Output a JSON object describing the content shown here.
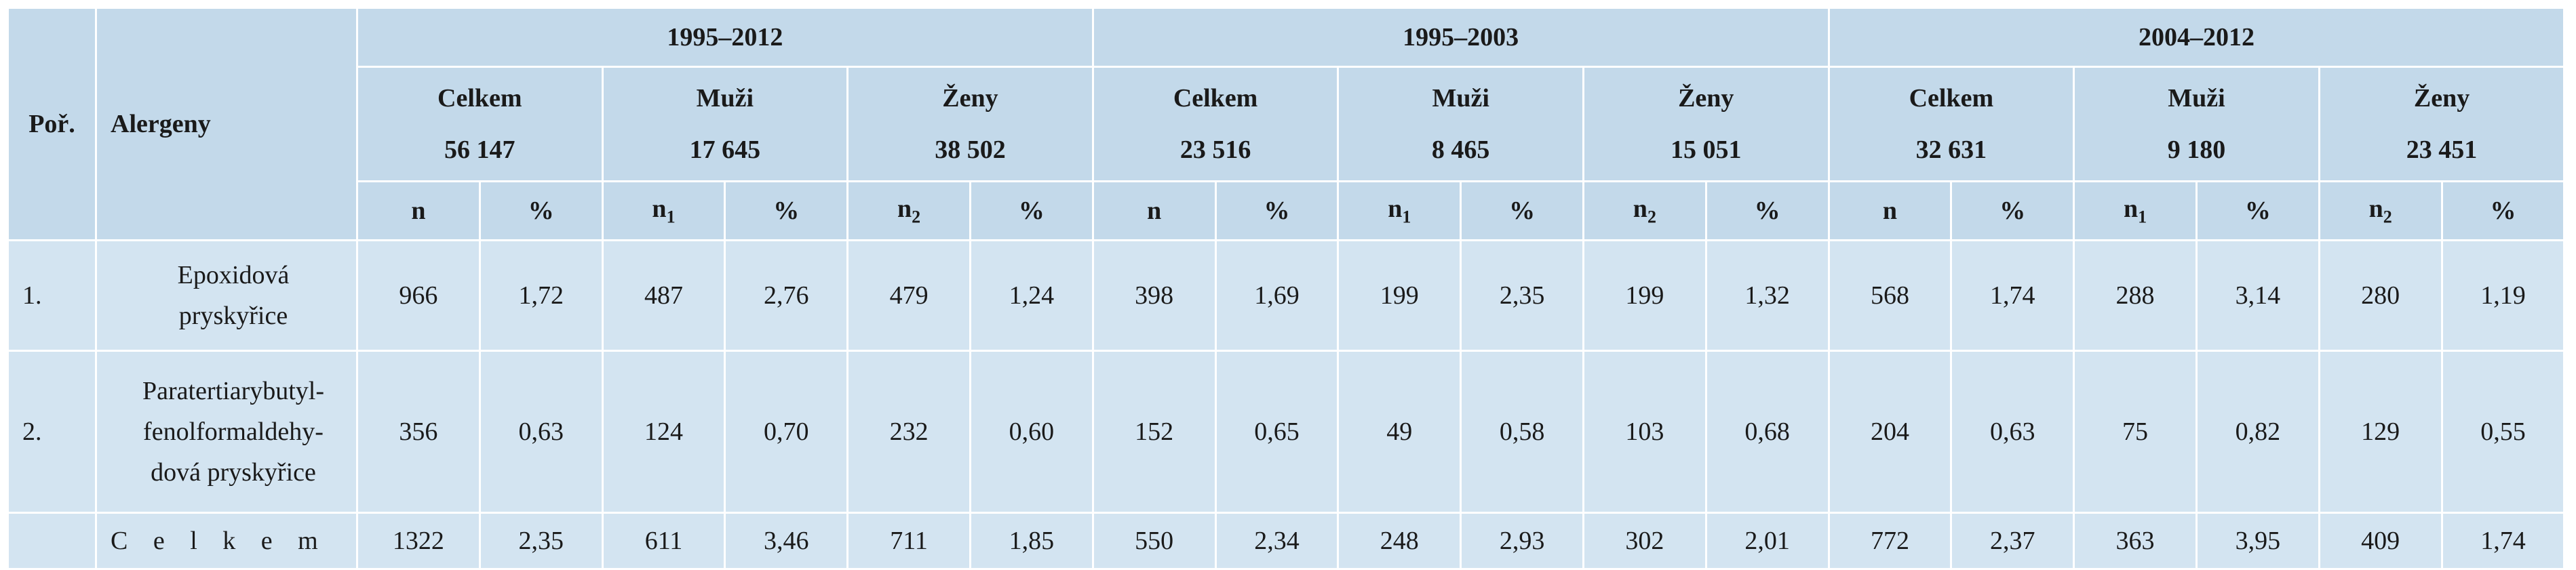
{
  "headers": {
    "por": "Poř.",
    "alergeny": "Alergeny",
    "periods": [
      "1995–2012",
      "1995–2003",
      "2004–2012"
    ],
    "groups": [
      {
        "label": "Celkem",
        "count": "56 147"
      },
      {
        "label": "Muži",
        "count": "17 645"
      },
      {
        "label": "Ženy",
        "count": "38 502"
      },
      {
        "label": "Celkem",
        "count": "23 516"
      },
      {
        "label": "Muži",
        "count": "8 465"
      },
      {
        "label": "Ženy",
        "count": "15 051"
      },
      {
        "label": "Celkem",
        "count": "32 631"
      },
      {
        "label": "Muži",
        "count": "9 180"
      },
      {
        "label": "Ženy",
        "count": "23 451"
      }
    ],
    "n": "n",
    "pct": "%",
    "n_sub_1": "1",
    "n_sub_2": "2"
  },
  "rows": [
    {
      "num": "1.",
      "name_lines": [
        "Epoxidová",
        "pryskyřice"
      ],
      "values": [
        "966",
        "1,72",
        "487",
        "2,76",
        "479",
        "1,24",
        "398",
        "1,69",
        "199",
        "2,35",
        "199",
        "1,32",
        "568",
        "1,74",
        "288",
        "3,14",
        "280",
        "1,19"
      ]
    },
    {
      "num": "2.",
      "name_lines": [
        "Paratertiarybutyl-",
        "fenolformaldehy-",
        "dová pryskyřice"
      ],
      "values": [
        "356",
        "0,63",
        "124",
        "0,70",
        "232",
        "0,60",
        "152",
        "0,65",
        "49",
        "0,58",
        "103",
        "0,68",
        "204",
        "0,63",
        "75",
        "0,82",
        "129",
        "0,55"
      ]
    }
  ],
  "total": {
    "label": "C e l k e m",
    "values": [
      "1322",
      "2,35",
      "611",
      "3,46",
      "711",
      "1,85",
      "550",
      "2,34",
      "248",
      "2,93",
      "302",
      "2,01",
      "772",
      "2,37",
      "363",
      "3,95",
      "409",
      "1,74"
    ]
  }
}
